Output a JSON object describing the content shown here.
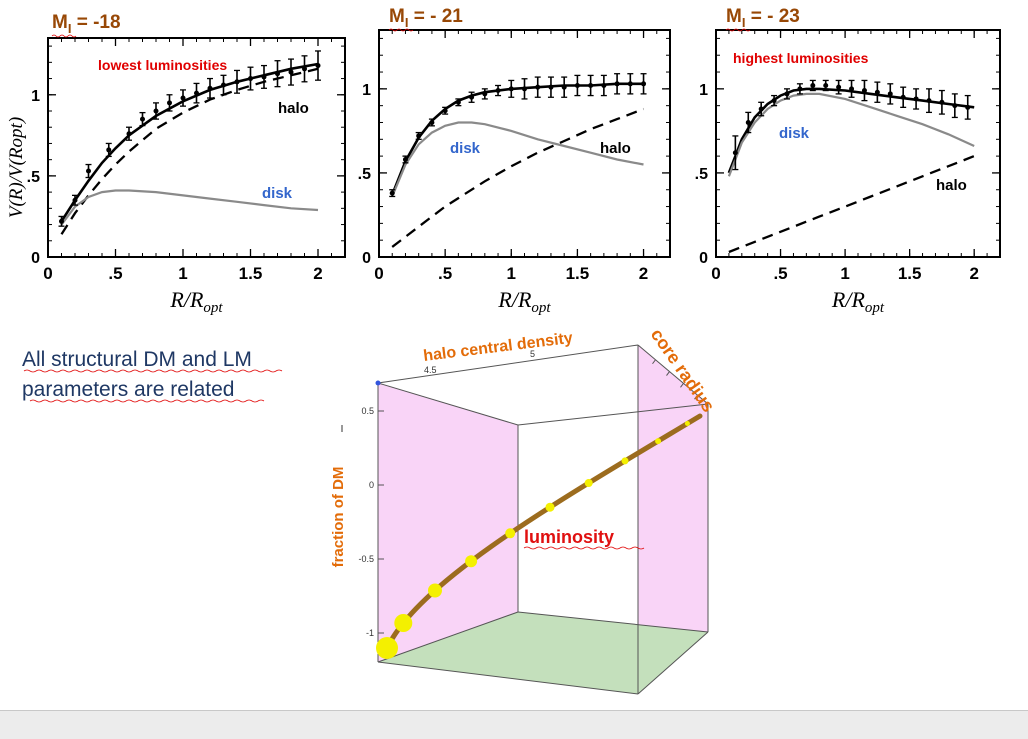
{
  "colors": {
    "mag_label": "#984806",
    "red_annot": "#e00000",
    "disk_label": "#3366cc",
    "halo_label": "#000000",
    "note_text": "#1f3864",
    "box_side": "#f9d4f7",
    "box_floor": "#c4e0bc",
    "curve": "#9c6c1e",
    "marker": "#f4f000",
    "orange_title": "#e36c09"
  },
  "panels": [
    {
      "mag": "-18",
      "annotation": "lowest luminosities",
      "halo_label": "halo",
      "disk_label": "disk",
      "show_ylabel": true
    },
    {
      "mag": "- 21",
      "annotation": "",
      "halo_label": "halo",
      "disk_label": "disk",
      "show_ylabel": false
    },
    {
      "mag": "- 23",
      "annotation": "highest  luminosities",
      "halo_label": "halo",
      "disk_label": "disk",
      "show_ylabel": false
    }
  ],
  "mag_prefix": "M",
  "mag_subscript": "I",
  "mag_equals": " = ",
  "note": {
    "line1": "All structural  DM and LM",
    "line2": " parameters are related"
  },
  "cube": {
    "top_label": "halo central density",
    "right_label": "core radius",
    "left_label": "fraction of DM",
    "curve_label": "luminosity"
  },
  "chart_data": [
    {
      "type": "line",
      "title": "MI = -18",
      "xlabel": "R/Ropt",
      "ylabel": "V(R)/V(Ropt)",
      "xlim": [
        0,
        2.2
      ],
      "ylim": [
        0,
        1.35
      ],
      "xticks": [
        0,
        0.5,
        1,
        1.5,
        2
      ],
      "xtick_labels": [
        "0",
        ".5",
        "1",
        "1.5",
        "2"
      ],
      "yticks": [
        0,
        0.5,
        1
      ],
      "ytick_labels": [
        "0",
        ".5",
        "1"
      ],
      "series": [
        {
          "name": "total",
          "style": "solid",
          "x": [
            0.1,
            0.2,
            0.3,
            0.4,
            0.5,
            0.6,
            0.8,
            1.0,
            1.2,
            1.4,
            1.6,
            1.8,
            2.0
          ],
          "y": [
            0.22,
            0.35,
            0.47,
            0.58,
            0.67,
            0.75,
            0.87,
            0.96,
            1.03,
            1.08,
            1.12,
            1.16,
            1.19
          ]
        },
        {
          "name": "halo",
          "style": "dashed",
          "x": [
            0.1,
            0.2,
            0.3,
            0.4,
            0.5,
            0.6,
            0.8,
            1.0,
            1.2,
            1.4,
            1.6,
            1.8,
            2.0
          ],
          "y": [
            0.14,
            0.27,
            0.38,
            0.48,
            0.57,
            0.65,
            0.79,
            0.89,
            0.97,
            1.03,
            1.08,
            1.12,
            1.16
          ]
        },
        {
          "name": "disk",
          "style": "grey",
          "x": [
            0.1,
            0.2,
            0.3,
            0.4,
            0.5,
            0.6,
            0.8,
            1.0,
            1.2,
            1.4,
            1.6,
            1.8,
            2.0
          ],
          "y": [
            0.2,
            0.31,
            0.37,
            0.4,
            0.41,
            0.41,
            0.4,
            0.38,
            0.36,
            0.34,
            0.32,
            0.3,
            0.29
          ]
        },
        {
          "name": "data",
          "style": "errorbar",
          "x": [
            0.1,
            0.2,
            0.3,
            0.45,
            0.6,
            0.7,
            0.8,
            0.9,
            1.0,
            1.1,
            1.2,
            1.3,
            1.4,
            1.5,
            1.6,
            1.7,
            1.8,
            1.9,
            2.0
          ],
          "y": [
            0.22,
            0.35,
            0.53,
            0.66,
            0.76,
            0.85,
            0.9,
            0.95,
            0.98,
            1.01,
            1.04,
            1.06,
            1.08,
            1.1,
            1.11,
            1.13,
            1.14,
            1.16,
            1.18
          ],
          "err": [
            0.03,
            0.03,
            0.04,
            0.04,
            0.04,
            0.04,
            0.05,
            0.05,
            0.05,
            0.06,
            0.06,
            0.06,
            0.07,
            0.07,
            0.07,
            0.08,
            0.08,
            0.08,
            0.09
          ]
        }
      ]
    },
    {
      "type": "line",
      "title": "MI = - 21",
      "xlabel": "R/Ropt",
      "ylabel": "",
      "xlim": [
        0,
        2.2
      ],
      "ylim": [
        0,
        1.35
      ],
      "xticks": [
        0,
        0.5,
        1,
        1.5,
        2
      ],
      "xtick_labels": [
        "0",
        ".5",
        "1",
        "1.5",
        "2"
      ],
      "yticks": [
        0,
        0.5,
        1
      ],
      "ytick_labels": [
        "0",
        ".5",
        "1"
      ],
      "series": [
        {
          "name": "total",
          "style": "solid",
          "x": [
            0.1,
            0.2,
            0.3,
            0.4,
            0.5,
            0.6,
            0.7,
            0.8,
            1.0,
            1.2,
            1.4,
            1.6,
            1.8,
            2.0
          ],
          "y": [
            0.37,
            0.57,
            0.71,
            0.81,
            0.88,
            0.93,
            0.96,
            0.98,
            1.0,
            1.01,
            1.02,
            1.02,
            1.03,
            1.03
          ]
        },
        {
          "name": "halo",
          "style": "dashed",
          "x": [
            0.1,
            0.2,
            0.3,
            0.4,
            0.5,
            0.6,
            0.8,
            1.0,
            1.2,
            1.4,
            1.6,
            1.8,
            2.0
          ],
          "y": [
            0.06,
            0.12,
            0.18,
            0.24,
            0.3,
            0.35,
            0.45,
            0.54,
            0.62,
            0.69,
            0.76,
            0.82,
            0.88
          ]
        },
        {
          "name": "disk",
          "style": "grey",
          "x": [
            0.1,
            0.2,
            0.3,
            0.4,
            0.5,
            0.6,
            0.7,
            0.8,
            1.0,
            1.2,
            1.4,
            1.6,
            1.8,
            2.0
          ],
          "y": [
            0.36,
            0.55,
            0.67,
            0.74,
            0.78,
            0.8,
            0.8,
            0.79,
            0.75,
            0.7,
            0.66,
            0.62,
            0.58,
            0.55
          ]
        },
        {
          "name": "data",
          "style": "errorbar",
          "x": [
            0.1,
            0.2,
            0.3,
            0.4,
            0.5,
            0.6,
            0.7,
            0.8,
            0.9,
            1.0,
            1.1,
            1.2,
            1.3,
            1.4,
            1.5,
            1.6,
            1.7,
            1.8,
            1.9,
            2.0
          ],
          "y": [
            0.38,
            0.58,
            0.72,
            0.8,
            0.87,
            0.92,
            0.95,
            0.97,
            0.99,
            1.0,
            1.0,
            1.01,
            1.01,
            1.01,
            1.02,
            1.02,
            1.02,
            1.03,
            1.03,
            1.03
          ],
          "err": [
            0.02,
            0.02,
            0.02,
            0.02,
            0.02,
            0.02,
            0.03,
            0.03,
            0.03,
            0.05,
            0.06,
            0.06,
            0.06,
            0.06,
            0.06,
            0.06,
            0.06,
            0.06,
            0.06,
            0.06
          ]
        }
      ]
    },
    {
      "type": "line",
      "title": "MI = - 23",
      "xlabel": "R/Ropt",
      "ylabel": "",
      "xlim": [
        0,
        2.2
      ],
      "ylim": [
        0,
        1.35
      ],
      "xticks": [
        0,
        0.5,
        1,
        1.5,
        2
      ],
      "xtick_labels": [
        "0",
        ".5",
        "1",
        "1.5",
        "2"
      ],
      "yticks": [
        0,
        0.5,
        1
      ],
      "ytick_labels": [
        "0",
        ".5",
        "1"
      ],
      "series": [
        {
          "name": "total",
          "style": "solid",
          "x": [
            0.1,
            0.15,
            0.2,
            0.3,
            0.4,
            0.5,
            0.6,
            0.7,
            0.8,
            1.0,
            1.2,
            1.4,
            1.6,
            1.8,
            2.0
          ],
          "y": [
            0.5,
            0.6,
            0.7,
            0.83,
            0.91,
            0.96,
            0.99,
            1.0,
            1.0,
            0.99,
            0.97,
            0.95,
            0.93,
            0.91,
            0.89
          ]
        },
        {
          "name": "halo",
          "style": "dashed",
          "x": [
            0.1,
            0.2,
            0.4,
            0.6,
            0.8,
            1.0,
            1.2,
            1.4,
            1.6,
            1.8,
            2.0
          ],
          "y": [
            0.03,
            0.06,
            0.12,
            0.18,
            0.24,
            0.3,
            0.36,
            0.42,
            0.48,
            0.54,
            0.6
          ]
        },
        {
          "name": "disk",
          "style": "grey",
          "x": [
            0.1,
            0.15,
            0.2,
            0.3,
            0.4,
            0.5,
            0.6,
            0.7,
            0.8,
            1.0,
            1.2,
            1.4,
            1.6,
            1.8,
            2.0
          ],
          "y": [
            0.48,
            0.58,
            0.68,
            0.8,
            0.88,
            0.93,
            0.96,
            0.97,
            0.97,
            0.94,
            0.89,
            0.84,
            0.79,
            0.73,
            0.66
          ]
        },
        {
          "name": "data",
          "style": "errorbar",
          "x": [
            0.15,
            0.25,
            0.35,
            0.45,
            0.55,
            0.65,
            0.75,
            0.85,
            0.95,
            1.05,
            1.15,
            1.25,
            1.35,
            1.45,
            1.55,
            1.65,
            1.75,
            1.85,
            1.95
          ],
          "y": [
            0.62,
            0.8,
            0.88,
            0.93,
            0.97,
            1.0,
            1.02,
            1.02,
            1.01,
            1.0,
            0.99,
            0.98,
            0.97,
            0.95,
            0.94,
            0.93,
            0.92,
            0.9,
            0.89
          ],
          "err": [
            0.1,
            0.06,
            0.04,
            0.03,
            0.03,
            0.03,
            0.03,
            0.03,
            0.04,
            0.05,
            0.06,
            0.06,
            0.06,
            0.06,
            0.06,
            0.07,
            0.07,
            0.07,
            0.07
          ]
        }
      ]
    },
    {
      "type": "scatter",
      "title": "",
      "xlabel": "halo central density",
      "ylabel": "fraction of DM",
      "zlabel": "core radius",
      "curve_label": "luminosity",
      "yticks": [
        -1,
        -0.5,
        0,
        0.5
      ],
      "ytick_labels": [
        "-1",
        "-0.5",
        "0",
        "0.5"
      ],
      "xtick_labels": [
        "4.5",
        "5"
      ],
      "points": [
        {
          "t": 0.0,
          "size": 11
        },
        {
          "t": 0.12,
          "size": 9
        },
        {
          "t": 0.27,
          "size": 7
        },
        {
          "t": 0.4,
          "size": 6
        },
        {
          "t": 0.52,
          "size": 5
        },
        {
          "t": 0.63,
          "size": 4.5
        },
        {
          "t": 0.73,
          "size": 4
        },
        {
          "t": 0.82,
          "size": 3.5
        },
        {
          "t": 0.9,
          "size": 3
        },
        {
          "t": 0.97,
          "size": 2.5
        }
      ]
    }
  ]
}
